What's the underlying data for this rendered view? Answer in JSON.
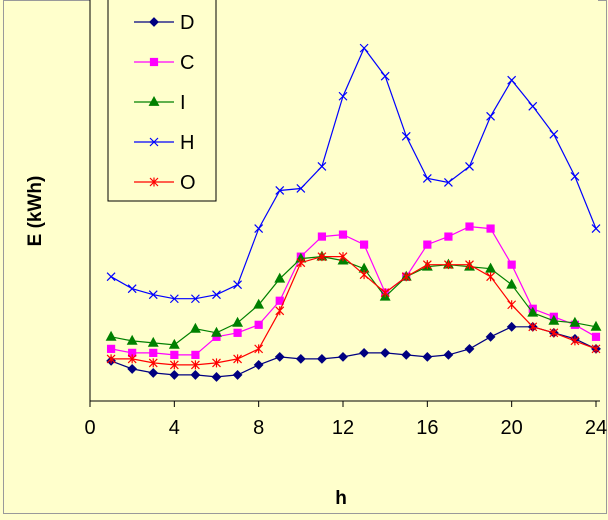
{
  "chart_data": {
    "type": "line",
    "xlabel": "h",
    "ylabel": "E (kWh)",
    "xlim": [
      0,
      24
    ],
    "xticks": [
      0,
      4,
      8,
      12,
      16,
      20,
      24
    ],
    "ylim": [
      0,
      100
    ],
    "grid": false,
    "legend_position": "top-left",
    "x": [
      1,
      2,
      3,
      4,
      5,
      6,
      7,
      8,
      9,
      10,
      11,
      12,
      13,
      14,
      15,
      16,
      17,
      18,
      19,
      20,
      21,
      22,
      23,
      24
    ],
    "series": [
      {
        "name": "D",
        "color": "#000080",
        "marker": "diamond",
        "values": [
          10,
          8,
          7,
          6.5,
          6.5,
          6,
          6.5,
          9,
          11,
          10.5,
          10.5,
          11,
          12,
          12,
          11.5,
          11,
          11.5,
          13,
          16,
          18.5,
          18.5,
          17,
          15.5,
          13
        ]
      },
      {
        "name": "C",
        "color": "#ff00ff",
        "marker": "square",
        "values": [
          13,
          12,
          12,
          11.5,
          11.5,
          16,
          17,
          19,
          25,
          36,
          41,
          41.5,
          39,
          27,
          31,
          39,
          41,
          43.5,
          43,
          34,
          23,
          21,
          19,
          16
        ]
      },
      {
        "name": "I",
        "color": "#008000",
        "marker": "triangle",
        "values": [
          16,
          15,
          14.5,
          14,
          18,
          17,
          19.5,
          24,
          30.5,
          35.5,
          36,
          35,
          33,
          26,
          31,
          33.5,
          34,
          33.5,
          33,
          29,
          22,
          20,
          19.5,
          18.5
        ]
      },
      {
        "name": "H",
        "color": "#0000ff",
        "marker": "x",
        "values": [
          31,
          28,
          26.5,
          25.5,
          25.5,
          26.5,
          29,
          43,
          52.5,
          53,
          58.5,
          76,
          88,
          81,
          66,
          55.5,
          54.5,
          58.5,
          71,
          80,
          73.5,
          66.5,
          56,
          43
        ]
      },
      {
        "name": "O",
        "color": "#ff0000",
        "marker": "asterisk",
        "values": [
          10.5,
          10.5,
          9.5,
          9,
          9,
          9.5,
          10.5,
          13,
          22.5,
          34.5,
          36,
          36,
          31.5,
          27,
          31,
          34,
          34,
          34,
          31,
          24,
          18.5,
          17,
          15,
          13
        ]
      }
    ]
  }
}
